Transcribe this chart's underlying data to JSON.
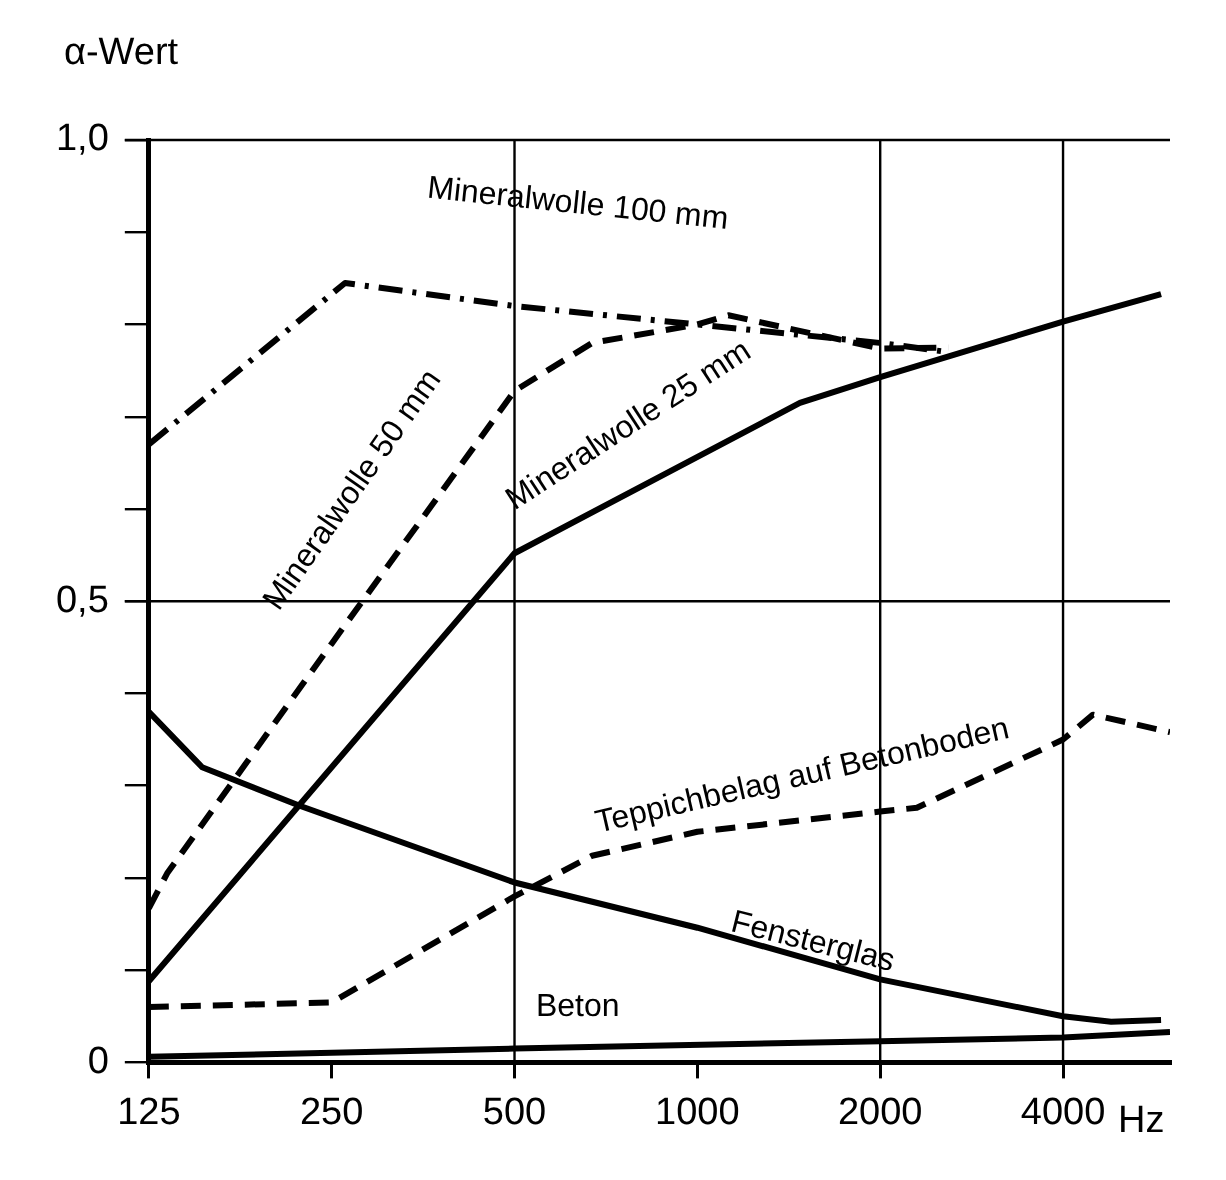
{
  "chart_data": {
    "type": "line",
    "ylabel": "α-Wert",
    "xlabel": "Hz",
    "log": "x",
    "xlim": [
      125,
      6000
    ],
    "xticks": [
      125,
      250,
      500,
      1000,
      2000,
      4000
    ],
    "ylim": [
      0,
      1
    ],
    "yticks": [
      0,
      {
        "value": 0.1,
        "label": null
      },
      {
        "value": 0.2,
        "label": null
      },
      {
        "value": 0.3,
        "label": null
      },
      {
        "value": 0.4,
        "label": null
      },
      {
        "value": 0.5,
        "label": "0,5"
      },
      {
        "value": 0.6,
        "label": null
      },
      {
        "value": 0.7,
        "label": null
      },
      {
        "value": 0.8,
        "label": null
      },
      {
        "value": 0.9,
        "label": null
      },
      {
        "value": 1,
        "label": "1,0"
      }
    ],
    "grid": false,
    "legend": false,
    "marker": "none",
    "ref_lines": [
      {
        "axis": "y",
        "value": 0.5,
        "color": "#000000"
      },
      {
        "axis": "x",
        "value": 500,
        "color": "#000000"
      },
      {
        "axis": "x",
        "value": 2000,
        "color": "#000000"
      },
      {
        "axis": "x",
        "value": 4000,
        "color": "#000000"
      }
    ],
    "series": [
      {
        "name": "Mineralwolle 100 mm",
        "color": "#000000",
        "line_style": "dashdot",
        "x": [
          125,
          263,
          500,
          1000,
          2000,
          2590
        ],
        "values": [
          0.67,
          0.845,
          0.82,
          0.8,
          0.78,
          0.77
        ]
      },
      {
        "name": "Mineralwolle 50 mm",
        "color": "#000000",
        "line_style": "dashed",
        "x": [
          125,
          134,
          250,
          500,
          671,
          1000,
          1125,
          2000,
          2590
        ],
        "values": [
          0.167,
          0.205,
          0.454,
          0.728,
          0.78,
          0.8,
          0.81,
          0.774,
          0.775
        ]
      },
      {
        "name": "Mineralwolle 25 mm",
        "color": "#000000",
        "line_style": "solid",
        "x": [
          125,
          500,
          1475,
          2000,
          4000,
          5800
        ],
        "values": [
          0.088,
          0.552,
          0.715,
          0.743,
          0.803,
          0.833
        ]
      },
      {
        "name": "Teppichbelag auf Betonboden",
        "color": "#000000",
        "line_style": "dashed",
        "x": [
          125,
          250,
          500,
          671,
          1000,
          2000,
          2298,
          4000,
          4480,
          6000
        ],
        "values": [
          0.06,
          0.065,
          0.18,
          0.224,
          0.25,
          0.272,
          0.276,
          0.35,
          0.377,
          0.358
        ]
      },
      {
        "name": "Fensterglas",
        "color": "#000000",
        "line_style": "solid",
        "x": [
          125,
          153,
          222,
          500,
          1000,
          2000,
          4000,
          4800,
          5800
        ],
        "values": [
          0.38,
          0.32,
          0.278,
          0.195,
          0.146,
          0.09,
          0.05,
          0.044,
          0.046
        ]
      },
      {
        "name": "Beton",
        "color": "#000000",
        "line_style": "solid",
        "x": [
          125,
          500,
          2000,
          4000,
          6000
        ],
        "values": [
          0.006,
          0.015,
          0.023,
          0.027,
          0.033
        ]
      }
    ]
  }
}
